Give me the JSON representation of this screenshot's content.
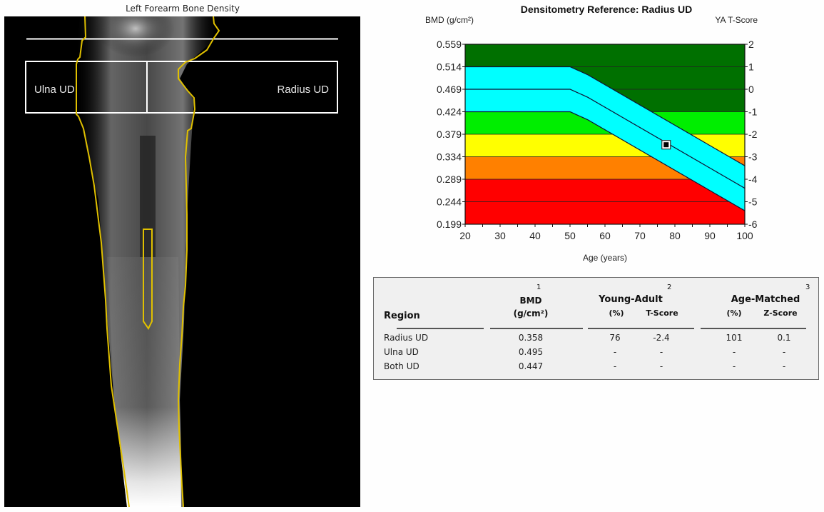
{
  "image_panel": {
    "title": "Left Forearm Bone Density",
    "roi_labels": [
      "Ulna UD",
      "Radius UD"
    ],
    "colors": {
      "outline": "#e0c000",
      "roi": "#ffffff",
      "background": "#000000"
    }
  },
  "chart_data": {
    "type": "area",
    "title": "Densitometry Reference: Radius UD",
    "ylabel_left": "BMD (g/cm²)",
    "ylabel_right": "YA T-Score",
    "xlabel": "Age (years)",
    "xlim": [
      20,
      100
    ],
    "ylim": [
      0.199,
      0.559
    ],
    "y2lim": [
      -6,
      2
    ],
    "x_ticks": [
      "20",
      "30",
      "40",
      "50",
      "60",
      "70",
      "80",
      "90",
      "100"
    ],
    "y_ticks": [
      "0.559",
      "0.514",
      "0.469",
      "0.424",
      "0.379",
      "0.334",
      "0.289",
      "0.244",
      "0.199"
    ],
    "y2_ticks": [
      "2",
      "1",
      "0",
      "-1",
      "-2",
      "-3",
      "-4",
      "-5",
      "-6"
    ],
    "bands": [
      {
        "name": "normal-high",
        "t_from": -1,
        "t_to": 2,
        "color": "#007000"
      },
      {
        "name": "osteopenia-mild",
        "t_from": -2,
        "t_to": -1,
        "color": "#00ee00"
      },
      {
        "name": "osteopenia",
        "t_from": -3,
        "t_to": -2,
        "color": "#ffff00"
      },
      {
        "name": "osteopenia-severe",
        "t_from": -4,
        "t_to": -3,
        "color": "#ff8000"
      },
      {
        "name": "osteoporosis",
        "t_from": -6,
        "t_to": -4,
        "color": "#ff0000"
      }
    ],
    "reference_curve": {
      "color": "#00ffff",
      "mean_t": {
        "ages": [
          20,
          50,
          55,
          100
        ],
        "t": [
          0,
          0,
          -0.35,
          -4.4
        ]
      },
      "sd_width_t": 1
    },
    "patient_point": {
      "age": 77.5,
      "bmd": 0.358
    }
  },
  "results_table": {
    "headers": {
      "region": "Region",
      "bmd": "BMD",
      "bmd_units": "(g/cm²)",
      "bmd_note": "1",
      "young_adult": "Young-Adult",
      "young_adult_note": "2",
      "age_matched": "Age-Matched",
      "age_matched_note": "3",
      "pct": "(%)",
      "t_score": "T-Score",
      "z_score": "Z-Score"
    },
    "rows": [
      {
        "region": "Radius UD",
        "bmd": "0.358",
        "ya_pct": "76",
        "t_score": "-2.4",
        "am_pct": "101",
        "z_score": "0.1"
      },
      {
        "region": "Ulna UD",
        "bmd": "0.495",
        "ya_pct": "-",
        "t_score": "-",
        "am_pct": "-",
        "z_score": "-"
      },
      {
        "region": "Both UD",
        "bmd": "0.447",
        "ya_pct": "-",
        "t_score": "-",
        "am_pct": "-",
        "z_score": "-"
      }
    ]
  }
}
